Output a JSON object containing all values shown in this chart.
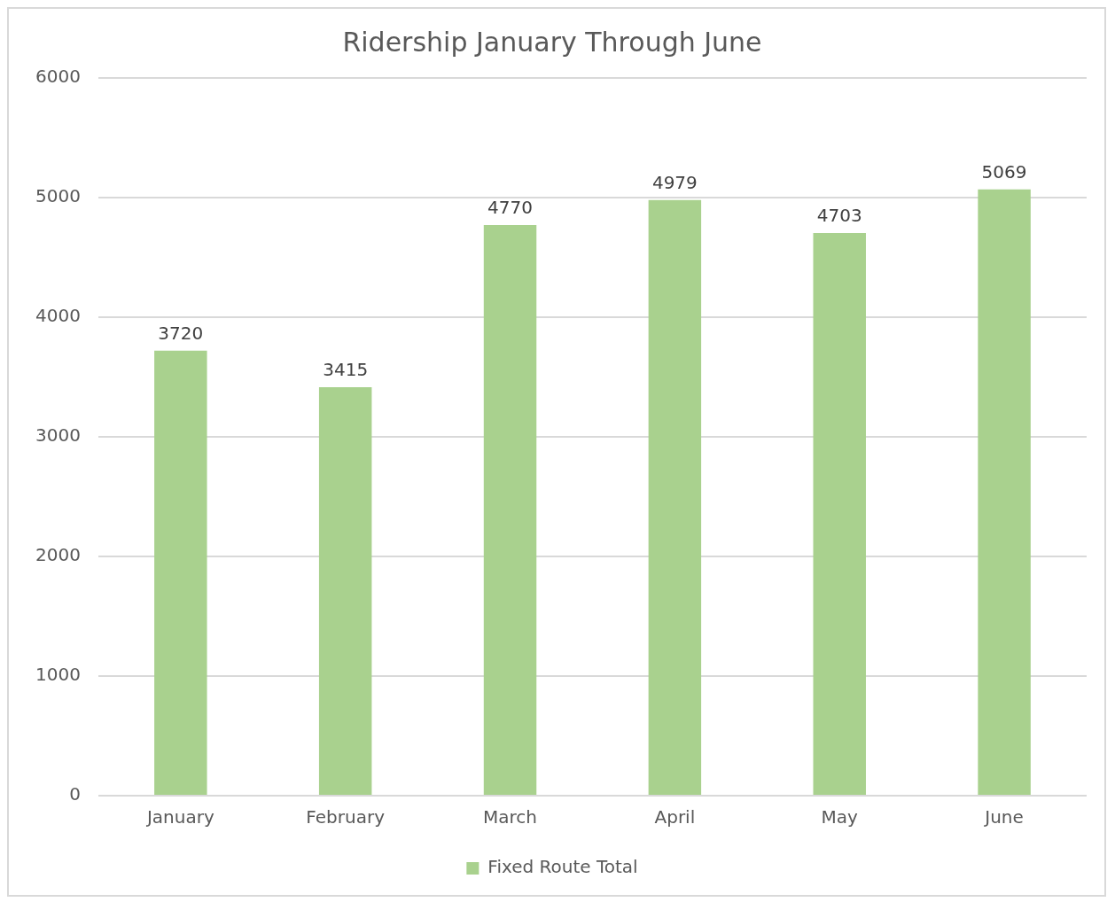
{
  "chart_data": {
    "type": "bar",
    "title": "Ridership January Through June",
    "categories": [
      "January",
      "February",
      "March",
      "April",
      "May",
      "June"
    ],
    "series": [
      {
        "name": "Fixed Route Total",
        "color": "#a9d18e",
        "values": [
          3720,
          3415,
          4770,
          4979,
          4703,
          5069
        ]
      }
    ],
    "ylim": [
      0,
      6000
    ],
    "yticks": [
      0,
      1000,
      2000,
      3000,
      4000,
      5000,
      6000
    ],
    "grid": "y",
    "legend": "bottom",
    "data_labels": true
  }
}
